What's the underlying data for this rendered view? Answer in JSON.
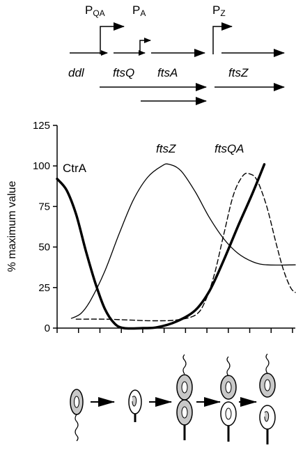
{
  "gene_map": {
    "promoters": [
      {
        "main": "P",
        "sub": "QA"
      },
      {
        "main": "P",
        "sub": "A"
      },
      {
        "main": "P",
        "sub": "Z"
      }
    ],
    "genes": [
      "ddl",
      "ftsQ",
      "ftsA",
      "ftsZ"
    ]
  },
  "chart_data": {
    "type": "line",
    "xlabel": "",
    "ylabel": "% maximum value",
    "ylim": [
      0,
      125
    ],
    "yticks": [
      0,
      25,
      50,
      75,
      100,
      125
    ],
    "x_units": "relative cell-cycle time (0–1)",
    "grid": false,
    "series": [
      {
        "name": "CtrA",
        "style": "thick-solid",
        "points": [
          [
            0.0,
            92
          ],
          [
            0.04,
            85
          ],
          [
            0.08,
            70
          ],
          [
            0.12,
            48
          ],
          [
            0.16,
            28
          ],
          [
            0.2,
            12
          ],
          [
            0.24,
            3
          ],
          [
            0.28,
            0
          ],
          [
            0.36,
            0
          ],
          [
            0.42,
            0.5
          ],
          [
            0.5,
            4
          ],
          [
            0.58,
            11
          ],
          [
            0.64,
            23
          ],
          [
            0.7,
            42
          ],
          [
            0.76,
            63
          ],
          [
            0.82,
            83
          ],
          [
            0.87,
            101
          ]
        ]
      },
      {
        "name": "ftsZ",
        "style": "thin-solid",
        "points": [
          [
            0.06,
            6
          ],
          [
            0.1,
            9
          ],
          [
            0.14,
            17
          ],
          [
            0.2,
            35
          ],
          [
            0.26,
            58
          ],
          [
            0.32,
            79
          ],
          [
            0.38,
            93
          ],
          [
            0.44,
            100
          ],
          [
            0.47,
            101
          ],
          [
            0.52,
            97
          ],
          [
            0.58,
            84
          ],
          [
            0.64,
            68
          ],
          [
            0.7,
            55
          ],
          [
            0.76,
            46
          ],
          [
            0.82,
            41
          ],
          [
            0.88,
            39
          ],
          [
            1.0,
            39
          ]
        ]
      },
      {
        "name": "ftsQA",
        "style": "dashed",
        "points": [
          [
            0.08,
            5.5
          ],
          [
            0.2,
            5.5
          ],
          [
            0.3,
            5
          ],
          [
            0.4,
            4.5
          ],
          [
            0.5,
            5
          ],
          [
            0.58,
            8
          ],
          [
            0.62,
            16
          ],
          [
            0.66,
            33
          ],
          [
            0.7,
            58
          ],
          [
            0.74,
            82
          ],
          [
            0.78,
            94
          ],
          [
            0.81,
            95
          ],
          [
            0.84,
            91
          ],
          [
            0.88,
            75
          ],
          [
            0.92,
            52
          ],
          [
            0.95,
            36
          ],
          [
            0.98,
            25
          ],
          [
            1.0,
            22
          ]
        ]
      }
    ],
    "x_ticks_count": 12
  },
  "colors": {
    "line": "#000000",
    "cell_gray": "#c8c8c8",
    "cell_white": "#ffffff"
  }
}
